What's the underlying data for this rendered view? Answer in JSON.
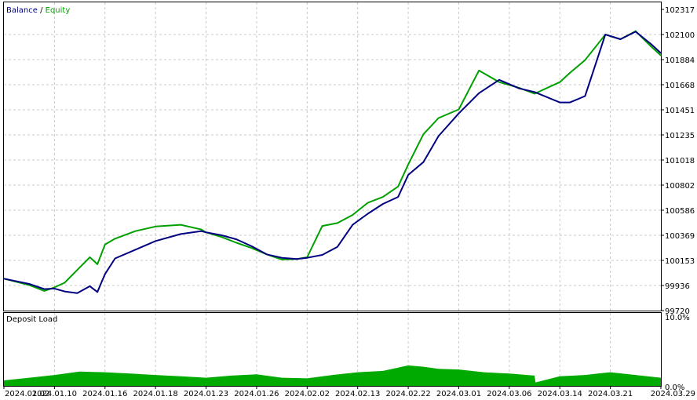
{
  "legend": {
    "balance_label": "Balance",
    "separator": " / ",
    "equity_label": "Equity",
    "balance_color": "#000080",
    "equity_color": "#00a000"
  },
  "lower_panel": {
    "title": "Deposit Load",
    "scale_top": "10.0%",
    "scale_bottom": "0.0%",
    "fill_color": "#00aa00"
  },
  "chart_data": [
    {
      "type": "line",
      "title": "",
      "y_tick_labels": [
        "102317",
        "102100",
        "101884",
        "101668",
        "101451",
        "101235",
        "101018",
        "100802",
        "100586",
        "100369",
        "100153",
        "99936",
        "99720"
      ],
      "x_tick_labels": [
        "2024.01.02",
        "2024.01.10",
        "2024.01.16",
        "2024.01.18",
        "2024.01.23",
        "2024.01.26",
        "2024.02.02",
        "2024.02.13",
        "2024.02.22",
        "2024.03.01",
        "2024.03.06",
        "2024.03.14",
        "2024.03.21",
        "2024.03.29"
      ],
      "ylim": [
        99720,
        102317
      ],
      "xlim": [
        0,
        13
      ],
      "grid": true,
      "legend_position": "top-left",
      "series": [
        {
          "name": "Balance",
          "color": "#000080",
          "x": [
            0,
            0.5,
            0.8,
            1.0,
            1.2,
            1.45,
            1.7,
            1.85,
            2.0,
            2.2,
            2.6,
            3.0,
            3.5,
            3.9,
            4.0,
            4.3,
            4.6,
            4.9,
            5.2,
            5.5,
            5.8,
            6.0,
            6.3,
            6.6,
            6.9,
            7.2,
            7.5,
            7.8,
            8.0,
            8.3,
            8.6,
            9.0,
            9.4,
            9.8,
            10.2,
            10.5,
            11.0,
            11.2,
            11.5,
            11.9,
            12.2,
            12.5,
            12.8,
            13.0
          ],
          "y": [
            99995,
            99950,
            99905,
            99910,
            99885,
            99870,
            99930,
            99880,
            100035,
            100170,
            100245,
            100320,
            100380,
            100405,
            100395,
            100370,
            100335,
            100275,
            100205,
            100175,
            100165,
            100175,
            100200,
            100270,
            100460,
            100555,
            100640,
            100700,
            100890,
            101000,
            101225,
            101420,
            101595,
            101710,
            101635,
            101605,
            101515,
            101515,
            101570,
            102100,
            102060,
            102125,
            102020,
            101940
          ]
        },
        {
          "name": "Equity",
          "color": "#00a000",
          "x": [
            0,
            0.5,
            0.8,
            1.0,
            1.2,
            1.45,
            1.7,
            1.85,
            2.0,
            2.2,
            2.6,
            3.0,
            3.5,
            3.9,
            4.0,
            4.3,
            4.6,
            4.9,
            5.2,
            5.5,
            5.8,
            6.0,
            6.3,
            6.6,
            6.9,
            7.2,
            7.5,
            7.8,
            8.0,
            8.3,
            8.6,
            9.0,
            9.4,
            9.8,
            10.2,
            10.5,
            11.0,
            11.2,
            11.5,
            11.9,
            12.2,
            12.5,
            12.8,
            13.0
          ],
          "y": [
            99995,
            99940,
            99890,
            99920,
            99960,
            100070,
            100180,
            100120,
            100290,
            100340,
            100405,
            100445,
            100460,
            100420,
            100395,
            100355,
            100305,
            100260,
            100205,
            100160,
            100165,
            100180,
            100450,
            100475,
            100545,
            100650,
            100700,
            100790,
            100980,
            101240,
            101380,
            101455,
            101790,
            101690,
            101640,
            101590,
            101690,
            101770,
            101880,
            102100,
            102060,
            102130,
            102000,
            101920
          ]
        }
      ]
    },
    {
      "type": "area",
      "title": "Deposit Load",
      "ylim": [
        0,
        10
      ],
      "y_unit": "%",
      "x": [
        0,
        0.5,
        1.0,
        1.5,
        2.0,
        2.5,
        3.0,
        3.5,
        4.0,
        4.5,
        5.0,
        5.5,
        6.0,
        6.5,
        7.0,
        7.5,
        8.0,
        8.3,
        8.6,
        9.0,
        9.5,
        10.0,
        10.5,
        10.52,
        11.0,
        11.5,
        12.0,
        12.5,
        13.0
      ],
      "values": [
        0.8,
        1.2,
        1.6,
        2.1,
        2.0,
        1.8,
        1.6,
        1.4,
        1.2,
        1.5,
        1.7,
        1.2,
        1.1,
        1.6,
        2.0,
        2.2,
        3.0,
        2.8,
        2.5,
        2.4,
        2.0,
        1.8,
        1.5,
        0.5,
        1.4,
        1.6,
        2.0,
        1.6,
        1.2
      ]
    }
  ]
}
